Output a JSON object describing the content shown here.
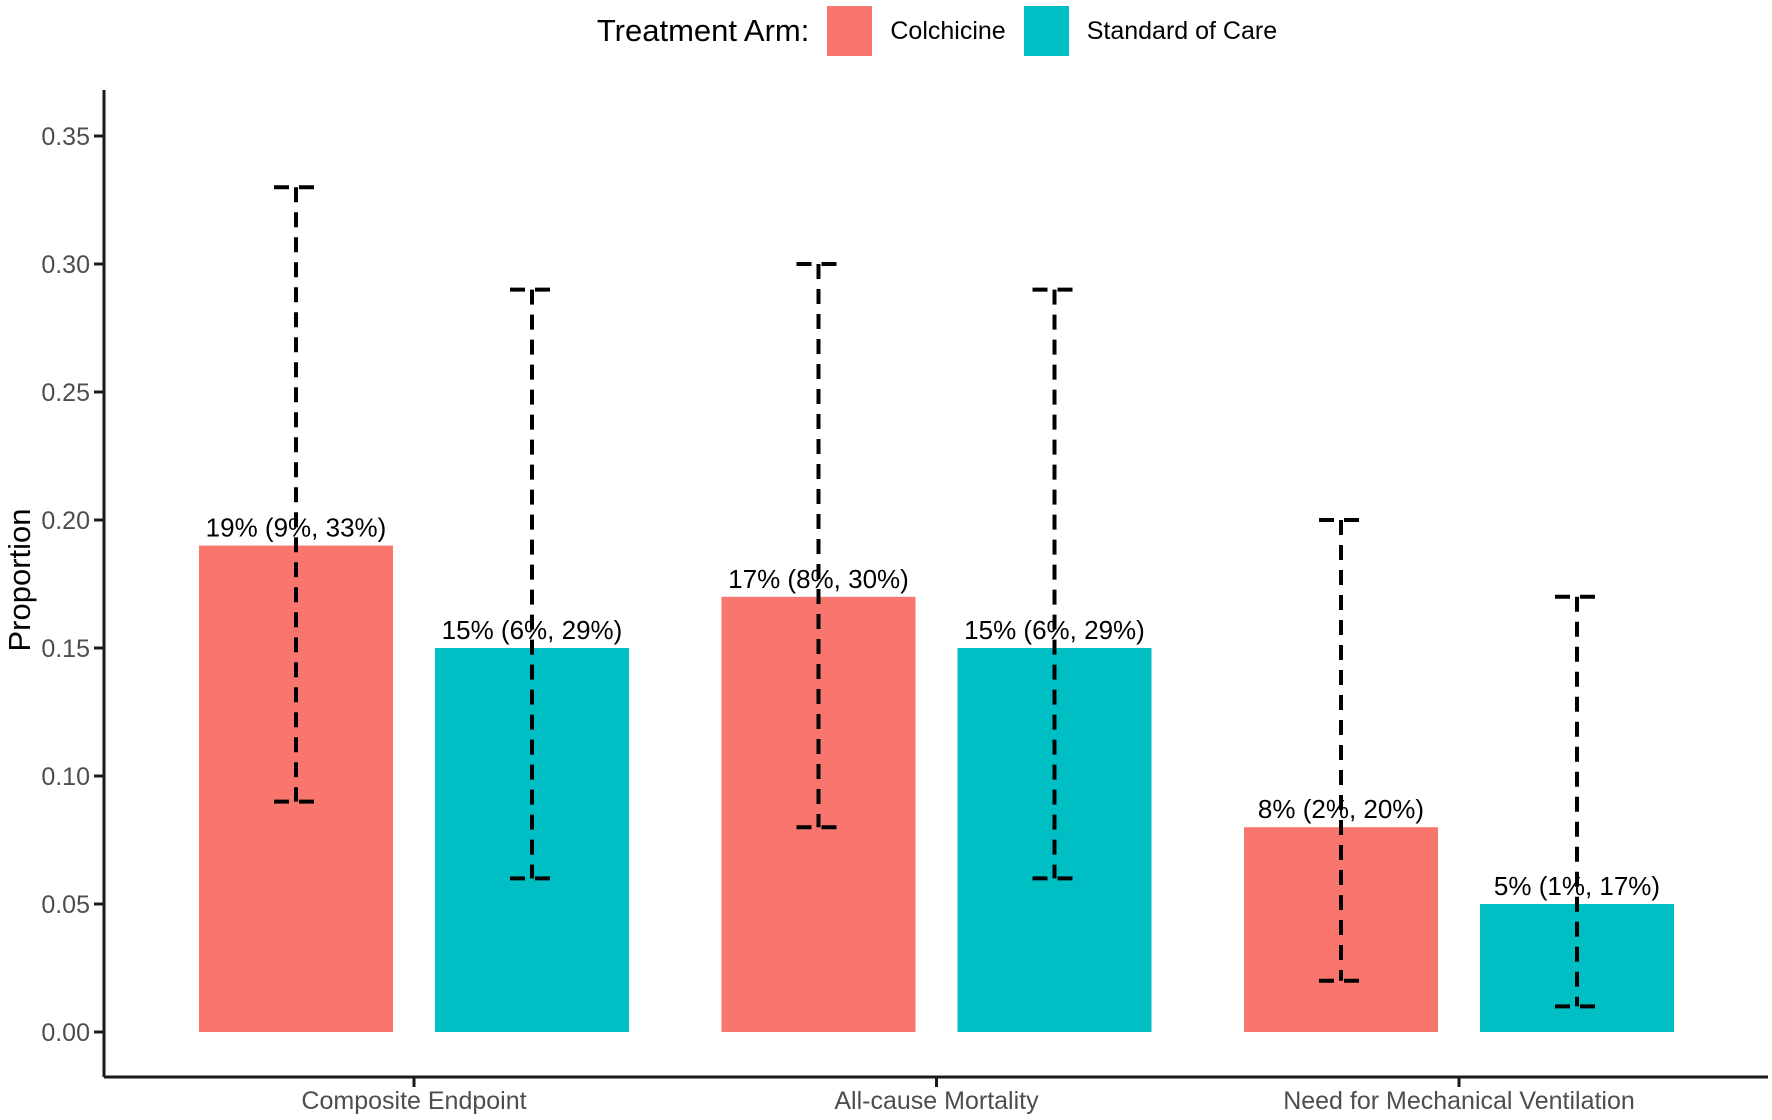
{
  "chart_data": {
    "type": "bar",
    "legend_title": "Treatment Arm:",
    "legend_position": "top",
    "ylabel": "Proportion",
    "xlabel": "",
    "ylim": [
      0,
      0.37
    ],
    "grid": false,
    "categories": [
      "Composite Endpoint",
      "All-cause Mortality",
      "Need for Mechanical Ventilation"
    ],
    "yticks": [
      {
        "value": 0.0,
        "label": "0.00"
      },
      {
        "value": 0.05,
        "label": "0.05"
      },
      {
        "value": 0.1,
        "label": "0.10"
      },
      {
        "value": 0.15,
        "label": "0.15"
      },
      {
        "value": 0.2,
        "label": "0.20"
      },
      {
        "value": 0.25,
        "label": "0.25"
      },
      {
        "value": 0.3,
        "label": "0.30"
      },
      {
        "value": 0.35,
        "label": "0.35"
      }
    ],
    "error_bar_style": "dashed",
    "series": [
      {
        "name": "Colchicine",
        "color": "#F8766D",
        "values": [
          0.19,
          0.17,
          0.08
        ],
        "ci_low": [
          0.09,
          0.08,
          0.02
        ],
        "ci_high": [
          0.33,
          0.3,
          0.2
        ],
        "labels": [
          "19% (9%, 33%)",
          "17% (8%, 30%)",
          "8% (2%, 20%)"
        ]
      },
      {
        "name": "Standard of Care",
        "color": "#00BFC4",
        "values": [
          0.15,
          0.15,
          0.05
        ],
        "ci_low": [
          0.06,
          0.06,
          0.01
        ],
        "ci_high": [
          0.29,
          0.29,
          0.17
        ],
        "labels": [
          "15% (6%, 29%)",
          "15% (6%, 29%)",
          "5% (1%, 17%)"
        ]
      }
    ]
  }
}
